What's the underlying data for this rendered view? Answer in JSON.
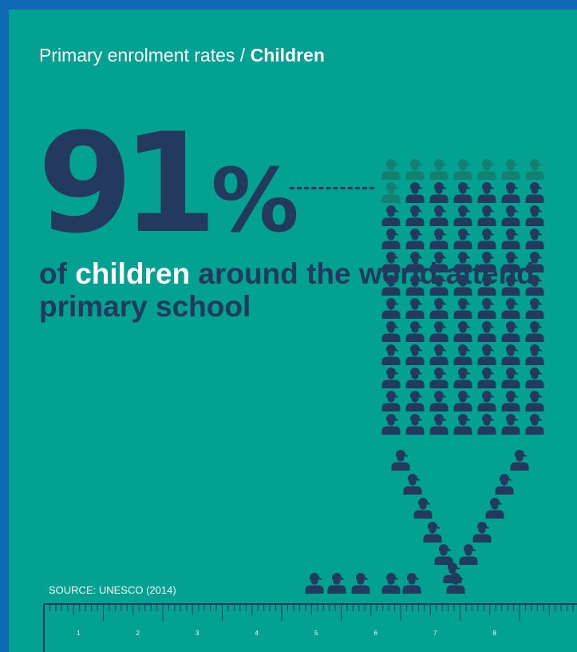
{
  "header": {
    "prefix": "Primary enrolment rates / ",
    "highlight": "Children"
  },
  "stat": {
    "number": "91",
    "symbol": "%"
  },
  "caption": {
    "before": "of ",
    "highlight": "children",
    "after": " around the world attend primary school"
  },
  "source": "SOURCE: UNESCO (2014)",
  "enrolled_fraction": 0.91,
  "colors": {
    "background": "#02a192",
    "frame": "#0f69b4",
    "figure_dark": "#233a5e",
    "figure_light": "#14806f",
    "highlight": "#ffffff"
  },
  "icon": "child-with-cap-icon",
  "ruler": {
    "labels": [
      "1",
      "2",
      "3",
      "4",
      "5",
      "6",
      "7",
      "8"
    ]
  }
}
